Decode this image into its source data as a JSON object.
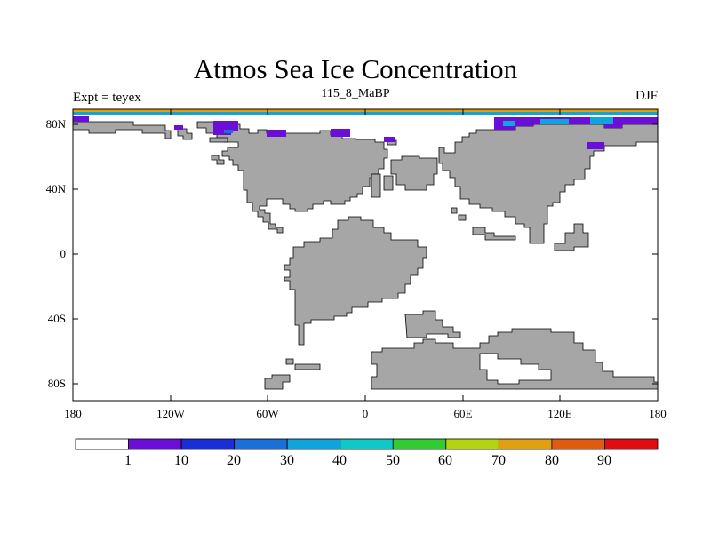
{
  "title": "Atmos Sea Ice Concentration",
  "left_label": "Expt = teyex",
  "center_label": "115_8_MaBP",
  "right_label": "DJF",
  "lon_ticks": [
    "180",
    "120W",
    "60W",
    "0",
    "60E",
    "120E",
    "180"
  ],
  "lat_ticks": [
    "80N",
    "40N",
    "0",
    "40S",
    "80S"
  ],
  "colorbar": {
    "labels": [
      "1",
      "10",
      "20",
      "30",
      "40",
      "50",
      "60",
      "70",
      "80",
      "90"
    ],
    "colors": [
      "#ffffff",
      "#6a0ed8",
      "#1a2ed8",
      "#1a6fd8",
      "#10a4dc",
      "#10c8c8",
      "#32cc32",
      "#b4d410",
      "#e0a010",
      "#e05a10",
      "#e00c10"
    ]
  },
  "colors": {
    "land": "#a6a6a6",
    "ocean": "#ffffff",
    "outline": "#000000"
  }
}
